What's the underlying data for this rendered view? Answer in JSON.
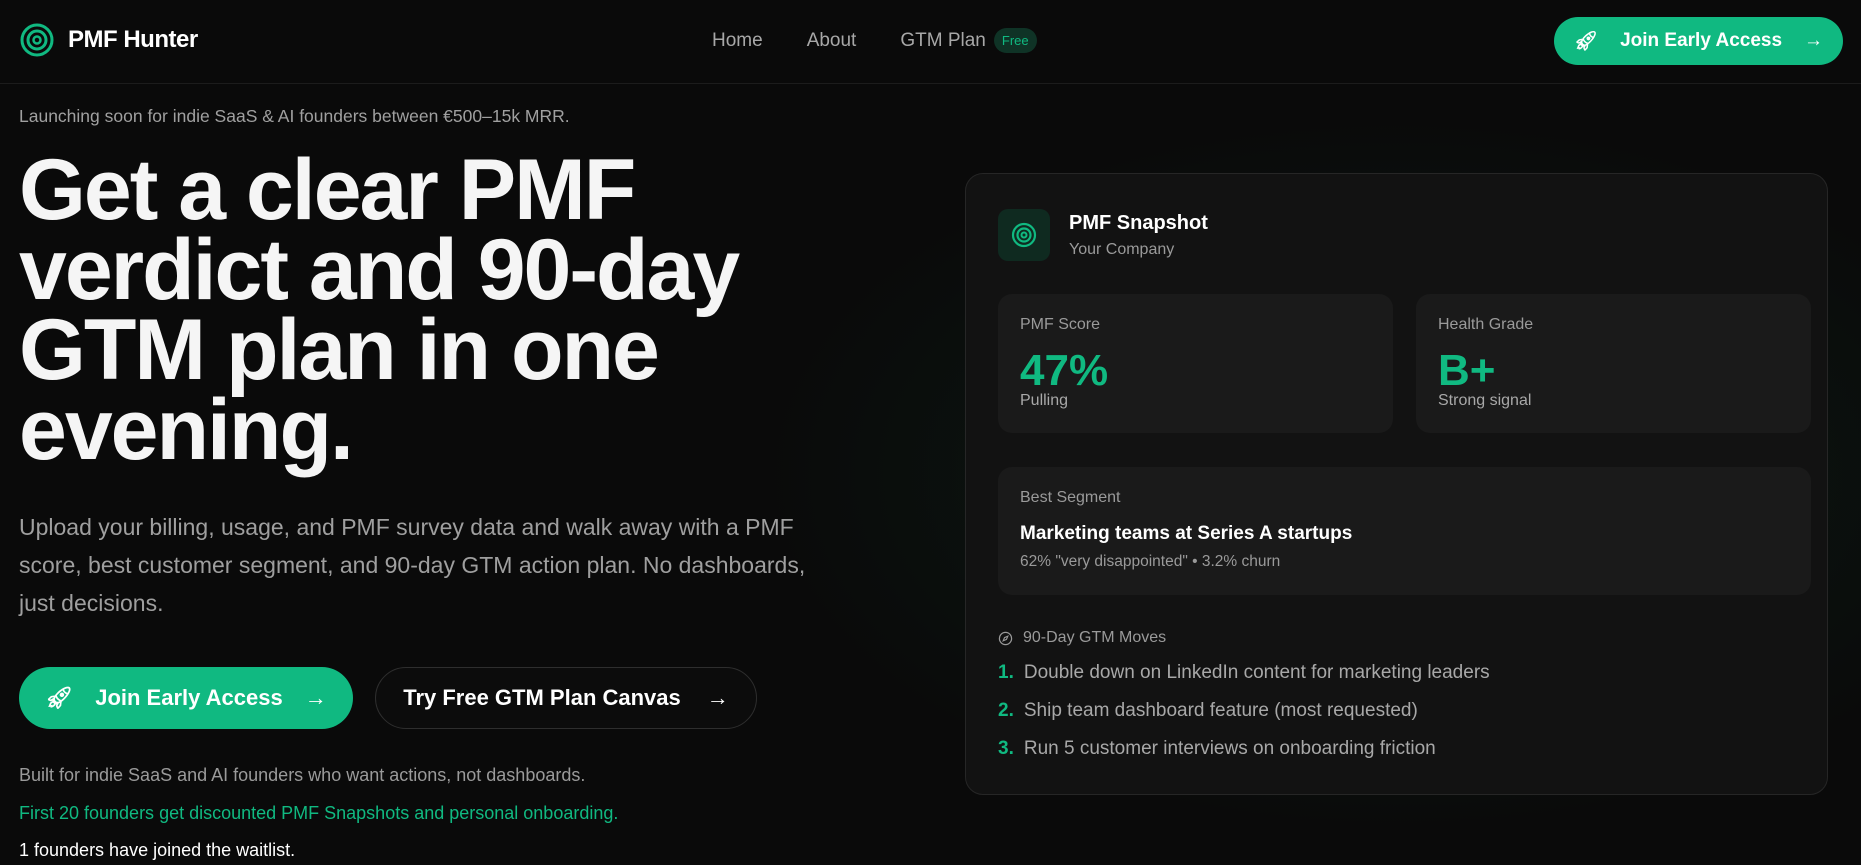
{
  "brand": {
    "name": "PMF Hunter",
    "accent": "#10b981"
  },
  "nav": {
    "items": [
      "Home",
      "About",
      "GTM Plan"
    ],
    "badge": "Free",
    "cta": "Join Early Access"
  },
  "hero": {
    "tagline": "Launching soon for indie SaaS & AI founders between €500–15k MRR.",
    "headline": "Get a clear PMF verdict and 90-day GTM plan in one evening.",
    "lead": "Upload your billing, usage, and PMF survey data and walk away with a PMF score, best customer segment, and 90-day GTM action plan. No dashboards, just decisions.",
    "primary_cta": "Join Early Access",
    "secondary_cta": "Try Free GTM Plan Canvas",
    "built_for": "Built for indie SaaS and AI founders who want actions, not dashboards.",
    "offer": "First 20 founders get discounted PMF Snapshots and personal onboarding.",
    "waitlist": "1 founders have joined the waitlist."
  },
  "snapshot": {
    "title": "PMF Snapshot",
    "company": "Your Company",
    "score": {
      "label": "PMF Score",
      "value": "47%",
      "status": "Pulling"
    },
    "grade": {
      "label": "Health Grade",
      "value": "B+",
      "status": "Strong signal"
    },
    "segment": {
      "label": "Best Segment",
      "name": "Marketing teams at Series A startups",
      "detail": "62% \"very disappointed\" • 3.2% churn"
    },
    "moves": {
      "title": "90-Day GTM Moves",
      "items": [
        {
          "n": "1.",
          "text": "Double down on LinkedIn content for marketing leaders"
        },
        {
          "n": "2.",
          "text": "Ship team dashboard feature (most requested)"
        },
        {
          "n": "3.",
          "text": "Run 5 customer interviews on onboarding friction"
        }
      ]
    }
  }
}
